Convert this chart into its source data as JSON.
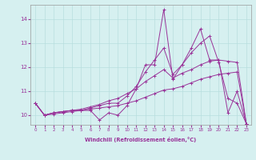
{
  "xlabel": "Windchill (Refroidissement éolien,°C)",
  "background_color": "#d6f0f0",
  "grid_color": "#b8dede",
  "line_color": "#993399",
  "x_ticks": [
    0,
    1,
    2,
    3,
    4,
    5,
    6,
    7,
    8,
    9,
    10,
    11,
    12,
    13,
    14,
    15,
    16,
    17,
    18,
    19,
    20,
    21,
    22,
    23
  ],
  "ylim": [
    9.6,
    14.6
  ],
  "xlim": [
    -0.5,
    23.5
  ],
  "yticks": [
    10,
    11,
    12,
    13,
    14
  ],
  "series": [
    [
      10.5,
      10.0,
      10.1,
      10.15,
      10.2,
      10.2,
      10.2,
      9.8,
      10.1,
      10.0,
      10.4,
      11.1,
      12.1,
      12.1,
      14.4,
      11.5,
      12.1,
      12.8,
      13.6,
      12.3,
      12.3,
      10.1,
      11.0,
      9.65
    ],
    [
      10.5,
      10.0,
      10.1,
      10.15,
      10.2,
      10.2,
      10.3,
      10.4,
      10.5,
      10.5,
      10.8,
      11.2,
      11.8,
      12.3,
      12.8,
      11.7,
      12.1,
      12.6,
      13.0,
      13.3,
      12.2,
      10.7,
      10.5,
      9.65
    ],
    [
      10.5,
      10.0,
      10.1,
      10.15,
      10.2,
      10.25,
      10.35,
      10.45,
      10.6,
      10.7,
      10.9,
      11.1,
      11.4,
      11.65,
      11.9,
      11.55,
      11.75,
      11.9,
      12.1,
      12.25,
      12.3,
      12.25,
      12.2,
      9.65
    ],
    [
      10.5,
      10.0,
      10.05,
      10.1,
      10.15,
      10.2,
      10.25,
      10.3,
      10.35,
      10.4,
      10.5,
      10.6,
      10.75,
      10.9,
      11.05,
      11.1,
      11.2,
      11.35,
      11.5,
      11.6,
      11.7,
      11.75,
      11.8,
      9.65
    ]
  ]
}
